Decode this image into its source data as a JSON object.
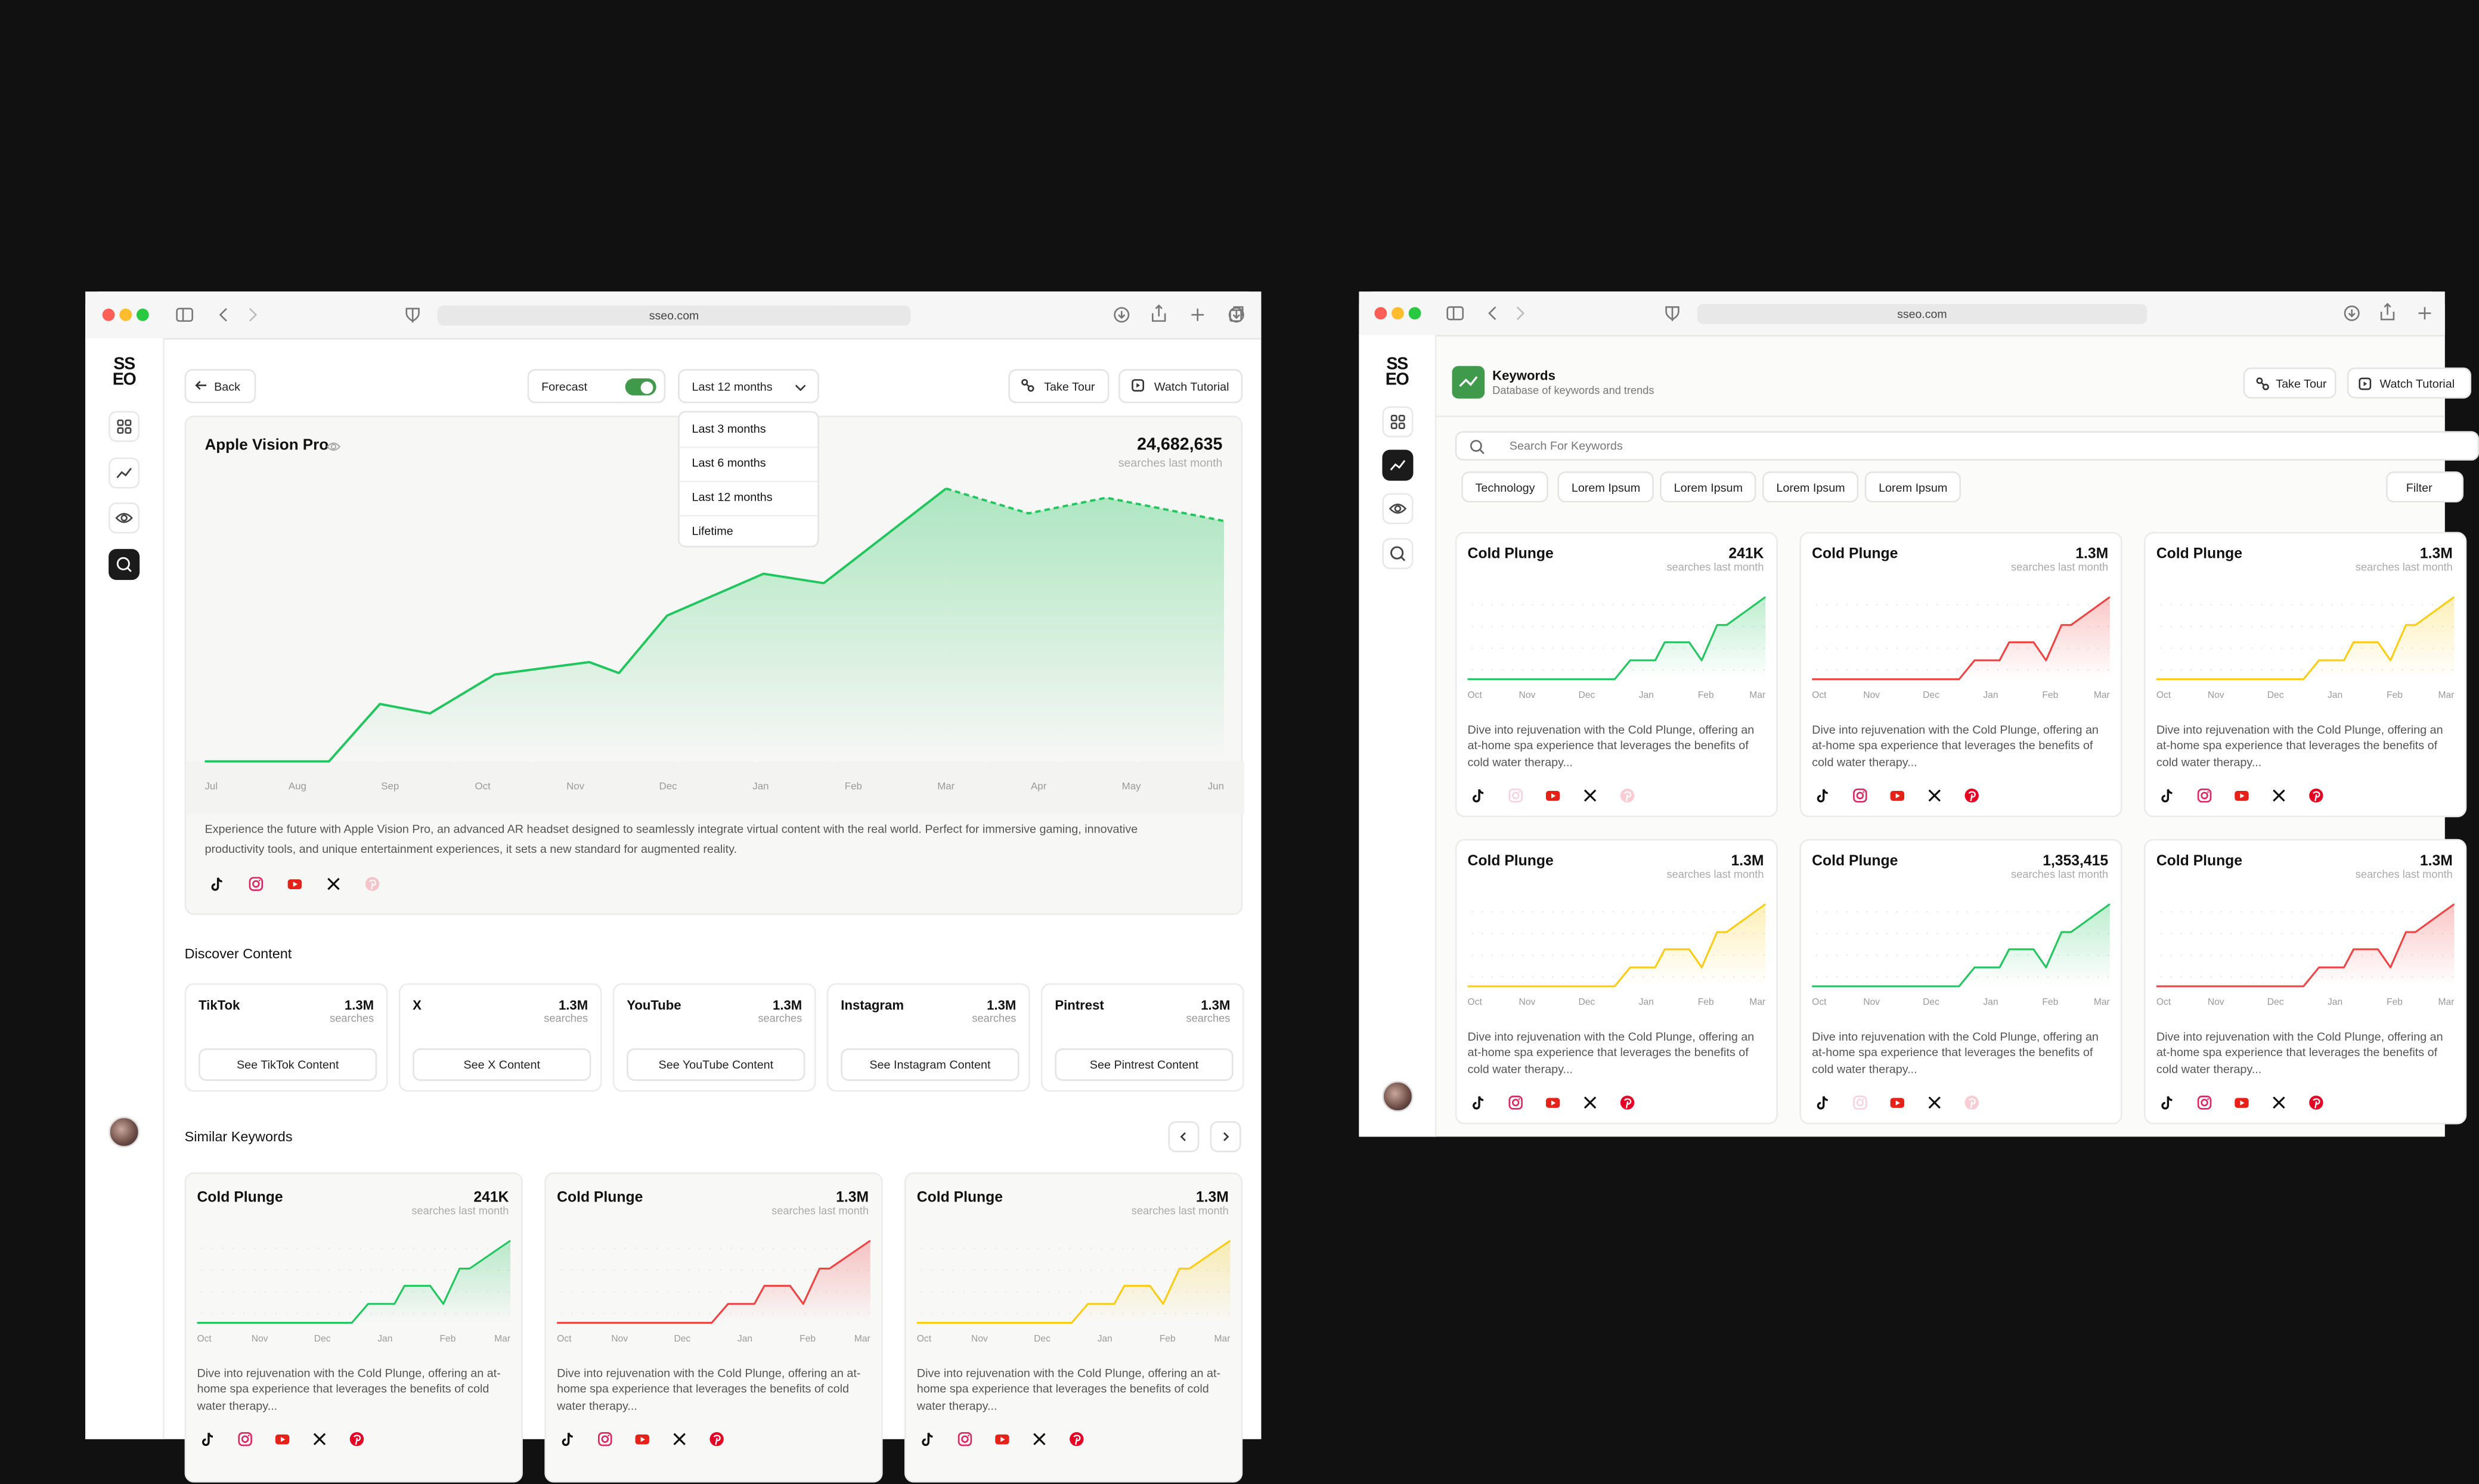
{
  "left": {
    "url": "sseo.com",
    "logo": [
      "SS",
      "EO"
    ],
    "back": "Back",
    "forecast": "Forecast",
    "range": "Last 12 months",
    "range_options": [
      "Last 3 months",
      "Last 6 months",
      "Last 12 months",
      "Lifetime"
    ],
    "take_tour": "Take Tour",
    "watch_tutorial": "Watch Tutorial",
    "discover": {
      "title": "Discover Content",
      "items": [
        {
          "name": "TikTok",
          "value": "1.3M",
          "unit": "searches",
          "button": "See TikTok Content"
        },
        {
          "name": "X",
          "value": "1.3M",
          "unit": "searches",
          "button": "See X Content"
        },
        {
          "name": "YouTube",
          "value": "1.3M",
          "unit": "searches",
          "button": "See YouTube Content"
        },
        {
          "name": "Instagram",
          "value": "1.3M",
          "unit": "searches",
          "button": "See Instagram Content"
        },
        {
          "name": "Pintrest",
          "value": "1.3M",
          "unit": "searches",
          "button": "See Pintrest Content"
        }
      ]
    },
    "similar_title": "Similar Keywords"
  },
  "right": {
    "url": "sseo.com",
    "logo": [
      "SS",
      "EO"
    ],
    "title": "Keywords",
    "subtitle": "Database of keywords and trends",
    "take_tour": "Take Tour",
    "watch_tutorial": "Watch Tutorial",
    "search": "Search For Keywords",
    "tags": [
      "Technology",
      "Lorem Ipsum",
      "Lorem Ipsum",
      "Lorem Ipsum",
      "Lorem Ipsum"
    ],
    "filter": "Filter"
  },
  "chart_data": [
    {
      "type": "line",
      "title": "Apple Vision Pro",
      "total": "24,682,635",
      "total_label": "searches last month",
      "xlim": [
        0,
        11
      ],
      "ylim": [
        0,
        100
      ],
      "xticks": [
        {
          "value": 0,
          "label": "Jul"
        },
        {
          "value": 1,
          "label": "Aug"
        },
        {
          "value": 2,
          "label": "Sep"
        },
        {
          "value": 3,
          "label": "Oct"
        },
        {
          "value": 4,
          "label": "Nov"
        },
        {
          "value": 5,
          "label": "Dec"
        },
        {
          "value": 6,
          "label": "Jan"
        },
        {
          "value": 7,
          "label": "Feb"
        },
        {
          "value": 8,
          "label": "Mar"
        },
        {
          "value": 9,
          "label": "Apr"
        },
        {
          "value": 10,
          "label": "May"
        },
        {
          "value": 11,
          "label": "Jun"
        }
      ],
      "series": [
        {
          "x": [
            0,
            1.34,
            1.89,
            2.43,
            3.13,
            4.15,
            4.47,
            4.99,
            6.03,
            6.68,
            8
          ],
          "values": [
            0,
            0,
            19.5,
            16.3,
            29.5,
            33.7,
            30,
            49.5,
            63.7,
            60.5,
            92.6
          ],
          "color": "#22c55e"
        },
        {
          "x": [
            8,
            8.89,
            9.73,
            11
          ],
          "values": [
            92.6,
            84.2,
            89.5,
            81.6
          ],
          "color": "#22c55e",
          "dashed": true
        }
      ],
      "description": "Experience the future with Apple Vision Pro, an advanced AR headset designed to seamlessly integrate virtual content with the real world. Perfect for immersive gaming, innovative productivity tools, and unique entertainment experiences, it sets a new standard for augmented reality.",
      "socials": [
        true,
        true,
        true,
        true,
        false
      ]
    },
    {
      "type": "line",
      "title": "Cold Plunge",
      "total": "241K",
      "total_label": "searches last month",
      "xlim": [
        0,
        5
      ],
      "ylim": [
        0,
        100
      ],
      "xticks": [
        {
          "value": 0,
          "label": "Oct"
        },
        {
          "value": 1,
          "label": "Nov"
        },
        {
          "value": 2,
          "label": "Dec"
        },
        {
          "value": 3,
          "label": "Jan"
        },
        {
          "value": 4,
          "label": "Feb"
        },
        {
          "value": 5,
          "label": "Mar"
        }
      ],
      "series": [
        {
          "x": [
            0,
            2.47,
            2.73,
            3.15,
            3.31,
            3.72,
            3.93,
            4.19,
            4.35,
            5
          ],
          "values": [
            0,
            0,
            23,
            23,
            45,
            45,
            23,
            66,
            66,
            100
          ],
          "color": "#22c55e"
        }
      ],
      "description": "Dive into rejuvenation with the Cold Plunge, offering an at-home spa experience that leverages the benefits of cold water therapy...",
      "socials": [
        true,
        true,
        true,
        true,
        true
      ]
    },
    {
      "type": "line",
      "title": "Cold Plunge",
      "total": "1.3M",
      "total_label": "searches last month",
      "xlim": [
        0,
        5
      ],
      "ylim": [
        0,
        100
      ],
      "xticks": [
        {
          "value": 0,
          "label": "Oct"
        },
        {
          "value": 1,
          "label": "Nov"
        },
        {
          "value": 2,
          "label": "Dec"
        },
        {
          "value": 3,
          "label": "Jan"
        },
        {
          "value": 4,
          "label": "Feb"
        },
        {
          "value": 5,
          "label": "Mar"
        }
      ],
      "series": [
        {
          "x": [
            0,
            2.47,
            2.73,
            3.15,
            3.31,
            3.72,
            3.93,
            4.19,
            4.35,
            5
          ],
          "values": [
            0,
            0,
            23,
            23,
            45,
            45,
            23,
            66,
            66,
            100
          ],
          "color": "#ef4444"
        }
      ],
      "description": "Dive into rejuvenation with the Cold Plunge, offering an at-home spa experience that leverages the benefits of cold water therapy...",
      "socials": [
        true,
        true,
        true,
        true,
        true
      ]
    },
    {
      "type": "line",
      "title": "Cold Plunge",
      "total": "1.3M",
      "total_label": "searches last month",
      "xlim": [
        0,
        5
      ],
      "ylim": [
        0,
        100
      ],
      "xticks": [
        {
          "value": 0,
          "label": "Oct"
        },
        {
          "value": 1,
          "label": "Nov"
        },
        {
          "value": 2,
          "label": "Dec"
        },
        {
          "value": 3,
          "label": "Jan"
        },
        {
          "value": 4,
          "label": "Feb"
        },
        {
          "value": 5,
          "label": "Mar"
        }
      ],
      "series": [
        {
          "x": [
            0,
            2.47,
            2.73,
            3.15,
            3.31,
            3.72,
            3.93,
            4.19,
            4.35,
            5
          ],
          "values": [
            0,
            0,
            23,
            23,
            45,
            45,
            23,
            66,
            66,
            100
          ],
          "color": "#facc15"
        }
      ],
      "description": "Dive into rejuvenation with the Cold Plunge, offering an at-home spa experience that leverages the benefits of cold water therapy...",
      "socials": [
        true,
        true,
        true,
        true,
        true
      ]
    },
    {
      "type": "line",
      "title": "Cold Plunge",
      "total": "241K",
      "total_label": "searches last month",
      "xlim": [
        0,
        5
      ],
      "ylim": [
        0,
        100
      ],
      "xticks": [
        {
          "value": 0,
          "label": "Oct"
        },
        {
          "value": 1,
          "label": "Nov"
        },
        {
          "value": 2,
          "label": "Dec"
        },
        {
          "value": 3,
          "label": "Jan"
        },
        {
          "value": 4,
          "label": "Feb"
        },
        {
          "value": 5,
          "label": "Mar"
        }
      ],
      "series": [
        {
          "x": [
            0,
            2.47,
            2.73,
            3.15,
            3.31,
            3.72,
            3.93,
            4.19,
            4.35,
            5
          ],
          "values": [
            0,
            0,
            23,
            23,
            45,
            45,
            23,
            66,
            66,
            100
          ],
          "color": "#22c55e"
        }
      ],
      "description": "Dive into rejuvenation with the Cold Plunge, offering an at-home spa experience that leverages the benefits of cold water therapy...",
      "socials": [
        true,
        false,
        true,
        true,
        false
      ]
    },
    {
      "type": "line",
      "title": "Cold Plunge",
      "total": "1.3M",
      "total_label": "searches last month",
      "xlim": [
        0,
        5
      ],
      "ylim": [
        0,
        100
      ],
      "xticks": [
        {
          "value": 0,
          "label": "Oct"
        },
        {
          "value": 1,
          "label": "Nov"
        },
        {
          "value": 2,
          "label": "Dec"
        },
        {
          "value": 3,
          "label": "Jan"
        },
        {
          "value": 4,
          "label": "Feb"
        },
        {
          "value": 5,
          "label": "Mar"
        }
      ],
      "series": [
        {
          "x": [
            0,
            2.47,
            2.73,
            3.15,
            3.31,
            3.72,
            3.93,
            4.19,
            4.35,
            5
          ],
          "values": [
            0,
            0,
            23,
            23,
            45,
            45,
            23,
            66,
            66,
            100
          ],
          "color": "#ef4444"
        }
      ],
      "description": "Dive into rejuvenation with the Cold Plunge, offering an at-home spa experience that leverages the benefits of cold water therapy...",
      "socials": [
        true,
        true,
        true,
        true,
        true
      ]
    },
    {
      "type": "line",
      "title": "Cold Plunge",
      "total": "1.3M",
      "total_label": "searches last month",
      "xlim": [
        0,
        5
      ],
      "ylim": [
        0,
        100
      ],
      "xticks": [
        {
          "value": 0,
          "label": "Oct"
        },
        {
          "value": 1,
          "label": "Nov"
        },
        {
          "value": 2,
          "label": "Dec"
        },
        {
          "value": 3,
          "label": "Jan"
        },
        {
          "value": 4,
          "label": "Feb"
        },
        {
          "value": 5,
          "label": "Mar"
        }
      ],
      "series": [
        {
          "x": [
            0,
            2.47,
            2.73,
            3.15,
            3.31,
            3.72,
            3.93,
            4.19,
            4.35,
            5
          ],
          "values": [
            0,
            0,
            23,
            23,
            45,
            45,
            23,
            66,
            66,
            100
          ],
          "color": "#facc15"
        }
      ],
      "description": "Dive into rejuvenation with the Cold Plunge, offering an at-home spa experience that leverages the benefits of cold water therapy...",
      "socials": [
        true,
        true,
        true,
        true,
        true
      ]
    },
    {
      "type": "line",
      "title": "Cold Plunge",
      "total": "1.3M",
      "total_label": "searches last month",
      "xlim": [
        0,
        5
      ],
      "ylim": [
        0,
        100
      ],
      "xticks": [
        {
          "value": 0,
          "label": "Oct"
        },
        {
          "value": 1,
          "label": "Nov"
        },
        {
          "value": 2,
          "label": "Dec"
        },
        {
          "value": 3,
          "label": "Jan"
        },
        {
          "value": 4,
          "label": "Feb"
        },
        {
          "value": 5,
          "label": "Mar"
        }
      ],
      "series": [
        {
          "x": [
            0,
            2.47,
            2.73,
            3.15,
            3.31,
            3.72,
            3.93,
            4.19,
            4.35,
            5
          ],
          "values": [
            0,
            0,
            23,
            23,
            45,
            45,
            23,
            66,
            66,
            100
          ],
          "color": "#facc15"
        }
      ],
      "description": "Dive into rejuvenation with the Cold Plunge, offering an at-home spa experience that leverages the benefits of cold water therapy...",
      "socials": [
        true,
        true,
        true,
        true,
        true
      ]
    },
    {
      "type": "line",
      "title": "Cold Plunge",
      "total": "1,353,415",
      "total_label": "searches last month",
      "xlim": [
        0,
        5
      ],
      "ylim": [
        0,
        100
      ],
      "xticks": [
        {
          "value": 0,
          "label": "Oct"
        },
        {
          "value": 1,
          "label": "Nov"
        },
        {
          "value": 2,
          "label": "Dec"
        },
        {
          "value": 3,
          "label": "Jan"
        },
        {
          "value": 4,
          "label": "Feb"
        },
        {
          "value": 5,
          "label": "Mar"
        }
      ],
      "series": [
        {
          "x": [
            0,
            2.47,
            2.73,
            3.15,
            3.31,
            3.72,
            3.93,
            4.19,
            4.35,
            5
          ],
          "values": [
            0,
            0,
            23,
            23,
            45,
            45,
            23,
            66,
            66,
            100
          ],
          "color": "#22c55e"
        }
      ],
      "description": "Dive into rejuvenation with the Cold Plunge, offering an at-home spa experience that leverages the benefits of cold water therapy...",
      "socials": [
        true,
        false,
        true,
        true,
        false
      ]
    },
    {
      "type": "line",
      "title": "Cold Plunge",
      "total": "1.3M",
      "total_label": "searches last month",
      "xlim": [
        0,
        5
      ],
      "ylim": [
        0,
        100
      ],
      "xticks": [
        {
          "value": 0,
          "label": "Oct"
        },
        {
          "value": 1,
          "label": "Nov"
        },
        {
          "value": 2,
          "label": "Dec"
        },
        {
          "value": 3,
          "label": "Jan"
        },
        {
          "value": 4,
          "label": "Feb"
        },
        {
          "value": 5,
          "label": "Mar"
        }
      ],
      "series": [
        {
          "x": [
            0,
            2.47,
            2.73,
            3.15,
            3.31,
            3.72,
            3.93,
            4.19,
            4.35,
            5
          ],
          "values": [
            0,
            0,
            23,
            23,
            45,
            45,
            23,
            66,
            66,
            100
          ],
          "color": "#ef4444"
        }
      ],
      "description": "Dive into rejuvenation with the Cold Plunge, offering an at-home spa experience that leverages the benefits of cold water therapy...",
      "socials": [
        true,
        true,
        true,
        true,
        true
      ]
    }
  ]
}
